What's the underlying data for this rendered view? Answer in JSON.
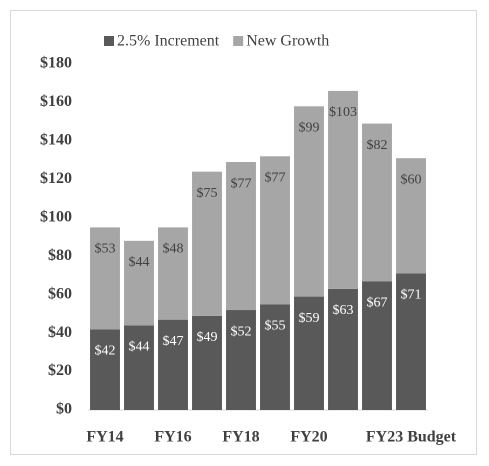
{
  "chart_data": {
    "type": "stacked_bar",
    "categories": [
      "FY14",
      null,
      "FY16",
      null,
      "FY18",
      null,
      "FY20",
      null,
      null,
      "FY23 Budget"
    ],
    "series": [
      {
        "name": "2.5% Increment",
        "color": "#595959",
        "values": [
          42,
          44,
          47,
          49,
          52,
          55,
          59,
          63,
          67,
          71
        ],
        "value_labels": [
          "$42",
          "$44",
          "$47",
          "$49",
          "$52",
          "$55",
          "$59",
          "$63",
          "$67",
          "$71"
        ]
      },
      {
        "name": "New Growth",
        "color": "#a6a6a6",
        "values": [
          53,
          44,
          48,
          75,
          77,
          77,
          99,
          103,
          82,
          60
        ],
        "value_labels": [
          "$53",
          "$44",
          "$48",
          "$75",
          "$77",
          "$77",
          "$99",
          "$103",
          "$82",
          "$60"
        ]
      }
    ],
    "ylim": [
      0,
      180
    ],
    "yticks": [
      {
        "value": 0,
        "label": "$0"
      },
      {
        "value": 20,
        "label": "$20"
      },
      {
        "value": 40,
        "label": "$40"
      },
      {
        "value": 60,
        "label": "$60"
      },
      {
        "value": 80,
        "label": "$80"
      },
      {
        "value": 100,
        "label": "$100"
      },
      {
        "value": 120,
        "label": "$120"
      },
      {
        "value": 140,
        "label": "$140"
      },
      {
        "value": 160,
        "label": "$160"
      },
      {
        "value": 180,
        "label": "$180"
      }
    ],
    "legend": "top"
  }
}
